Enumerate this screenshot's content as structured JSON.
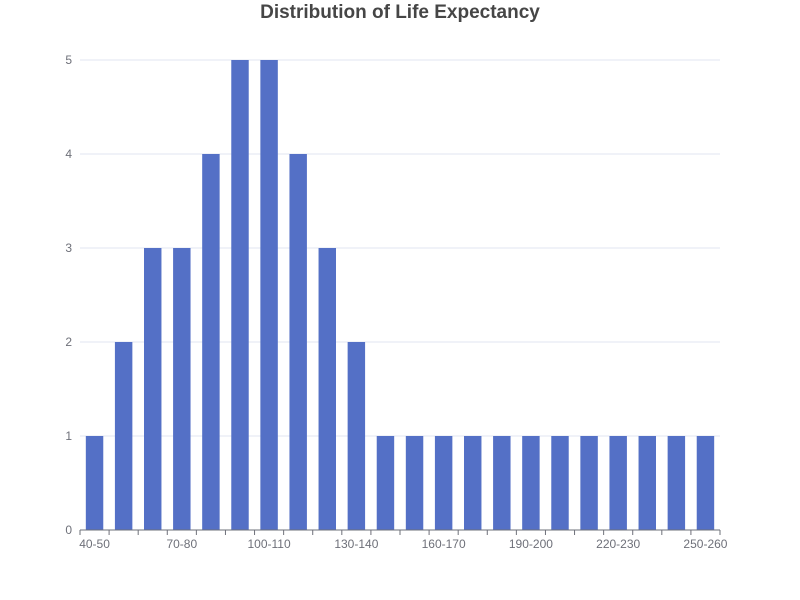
{
  "chart_data": {
    "type": "bar",
    "title": "Distribution of Life Expectancy",
    "xlabel": "",
    "ylabel": "",
    "categories": [
      "40-50",
      "50-60",
      "60-70",
      "70-80",
      "80-90",
      "90-100",
      "100-110",
      "110-120",
      "120-130",
      "130-140",
      "140-150",
      "150-160",
      "160-170",
      "170-180",
      "180-190",
      "190-200",
      "200-210",
      "210-220",
      "220-230",
      "230-240",
      "240-250",
      "250-260"
    ],
    "values": [
      1,
      2,
      3,
      3,
      4,
      5,
      5,
      4,
      3,
      2,
      1,
      1,
      1,
      1,
      1,
      1,
      1,
      1,
      1,
      1,
      1,
      1
    ],
    "visible_x_ticks": [
      "40-50",
      "70-80",
      "100-110",
      "130-140",
      "160-170",
      "190-200",
      "220-230",
      "250-260"
    ],
    "y_ticks": [
      0,
      1,
      2,
      3,
      4,
      5
    ],
    "ylim": [
      0,
      5
    ],
    "grid": true,
    "legend": "none",
    "colors": {
      "bar": "#5470c6",
      "grid": "#e0e6f1",
      "axis": "#6e7079",
      "title": "#464646"
    }
  }
}
